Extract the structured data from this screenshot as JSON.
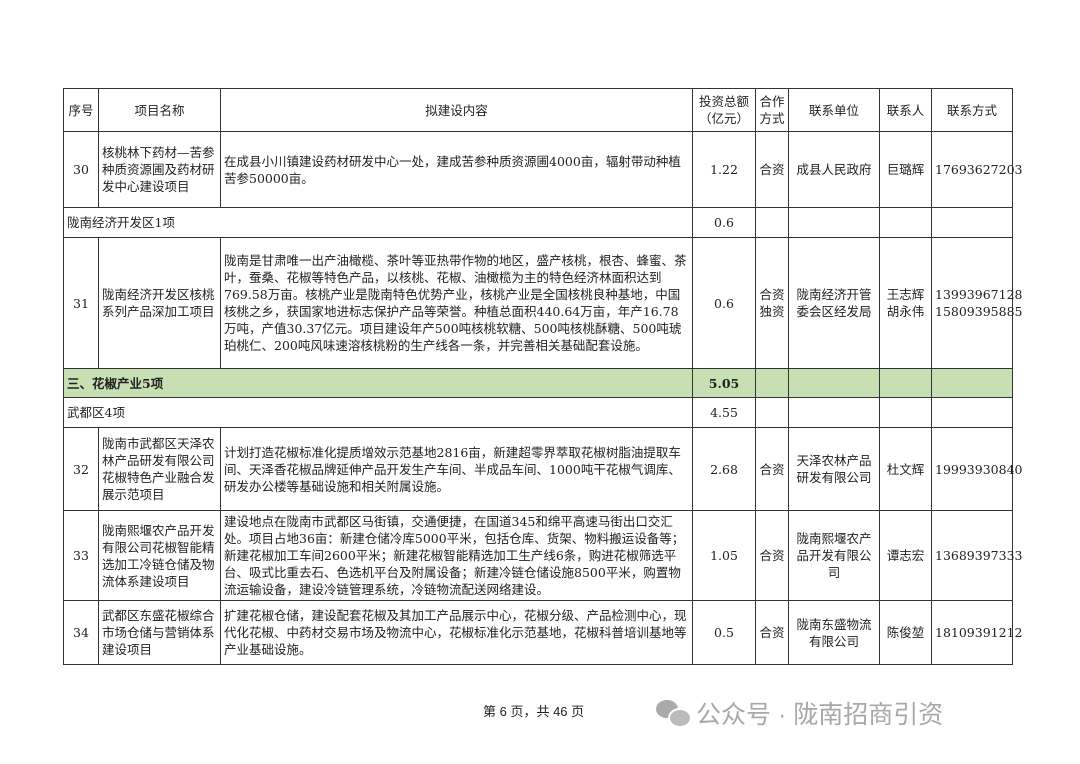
{
  "header": [
    "序号",
    "项目名称",
    "拟建设内容",
    "投资总额\n（亿元）",
    "合作\n方式",
    "联系单位",
    "联系人",
    "联系方式"
  ],
  "rows": [
    {
      "type": "item",
      "no": "30",
      "name": "核桃林下药材—苦参种质资源圃及药材研发中心建设项目",
      "content": "在成县小川镇建设药材研发中心一处，建成苦参种质资源圃4000亩，辐射带动种植苦参50000亩。",
      "amount": "1.22",
      "mode": "合资",
      "unit": "成县人民政府",
      "person": "巨璐辉",
      "phone": "17693627203"
    },
    {
      "type": "sub",
      "label": "陇南经济开发区1项",
      "amount": "0.6"
    },
    {
      "type": "item",
      "no": "31",
      "name": "陇南经济开发区核桃系列产品深加工项目",
      "content": "陇南是甘肃唯一出产油橄榄、茶叶等亚热带作物的地区，盛产核桃，根杏、蜂蜜、茶叶，蚕桑、花椒等特色产品，以核桃、花椒、油橄榄为主的特色经济林面积达到769.58万亩。核桃产业是陇南特色优势产业，核桃产业是全国核桃良种基地，中国核桃之乡，获国家地进标志保护产品等荣誉。种植总面积440.64万亩，年产16.78万吨，产值30.37亿元。项目建设年产500吨核桃软糖、500吨核桃酥糖、500吨琥珀桃仁、200吨风味速溶核桃粉的生产线各一条，并完善相关基础配套设施。",
      "amount": "0.6",
      "mode": "合资\n独资",
      "unit": "陇南经济开管委会区经发局",
      "person": "王志辉\n胡永伟",
      "phone": "13993967128\n15809395885"
    },
    {
      "type": "section",
      "label": "三、花椒产业5项",
      "amount": "5.05"
    },
    {
      "type": "sub",
      "label": "武都区4项",
      "amount": "4.55"
    },
    {
      "type": "item",
      "no": "32",
      "name": "陇南市武都区天泽农林产品研发有限公司花椒特色产业融合发展示范项目",
      "content": "计划打造花椒标准化提质增效示范基地2816亩，新建超零界萃取花椒树脂油提取车间、天泽香花椒品牌延伸产品开发生产车间、半成品车间、1000吨干花椒气调库、研发办公楼等基础设施和相关附属设施。",
      "amount": "2.68",
      "mode": "合资",
      "unit": "天泽农林产品研发有限公司",
      "person": "杜文辉",
      "phone": "19993930840"
    },
    {
      "type": "item",
      "no": "33",
      "name": "陇南熙堰农产品开发有限公司花椒智能精选加工冷链仓储及物流体系建设项目",
      "content": "建设地点在陇南市武都区马街镇，交通便捷，在国道345和绵平高速马街出口交汇处。项目占地36亩：新建仓储冷库5000平米，包括仓库、货架、物料搬运设备等；新建花椒加工车间2600平米；新建花椒智能精选加工生产线6条，购进花椒筛选平台、吸式比重去石、色选机平台及附属设备；新建冷链仓储设施8500平米，购置物流运输设备，建设冷链管理系统，冷链物流配送网络建设。",
      "amount": "1.05",
      "mode": "合资",
      "unit": "陇南熙堰农产品开发有限公司",
      "person": "谭志宏",
      "phone": "13689397333"
    },
    {
      "type": "item",
      "no": "34",
      "name": "武都区东盛花椒综合市场仓储与营销体系建设项目",
      "content": "扩建花椒仓储，建设配套花椒及其加工产品展示中心，花椒分级、产品检测中心，现代化花椒、中药材交易市场及物流中心，花椒标准化示范基地，花椒科普培训基地等产业基础设施。",
      "amount": "0.5",
      "mode": "合资",
      "unit": "陇南东盛物流有限公司",
      "person": "陈俊堃",
      "phone": "18109391212"
    }
  ],
  "footer": {
    "page_text": "第 6 页，共 46 页"
  },
  "watermark": {
    "icon": "wechat-icon",
    "text": "公众号 · 陇南招商引资"
  },
  "colors": {
    "section_bg": "#c6e0b4",
    "watermark": "#a8a8a8"
  }
}
